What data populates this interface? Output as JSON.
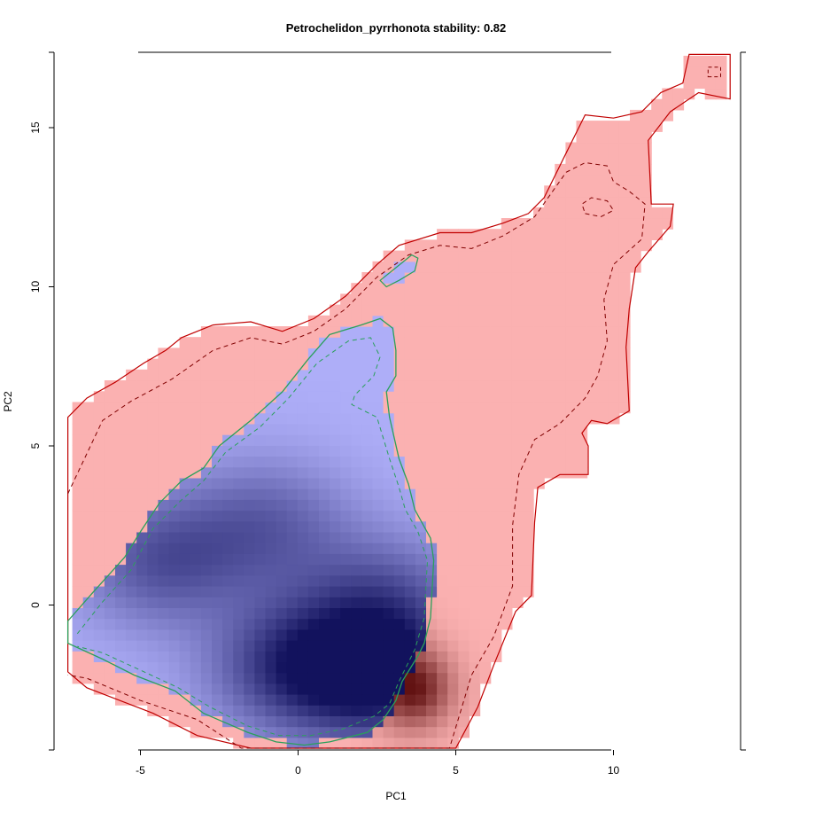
{
  "chart_data": {
    "type": "heatmap",
    "title": "Petrochelidon_pyrrhonota stability: 0.82",
    "xlabel": "PC1",
    "ylabel": "PC2",
    "x_ticks": [
      -5,
      0,
      5,
      10
    ],
    "y_ticks": [
      0,
      5,
      10,
      15
    ],
    "xlim": [
      -7.5,
      14
    ],
    "ylim": [
      -4.5,
      17.3
    ],
    "colors": {
      "background_density": "#fbb1b1",
      "background_dark": "#5a0a0a",
      "niche_overlap": "#aeaef8",
      "niche_dark": "#0a0a55",
      "background_contour": "#c00000",
      "background_contour_dashed": "#800000",
      "niche_contour": "#2aa05a"
    },
    "regions": {
      "background_outline": [
        [
          -7.3,
          5.4
        ],
        [
          -7.3,
          5.9
        ],
        [
          -6.7,
          6.5
        ],
        [
          -5.8,
          7.0
        ],
        [
          -4.9,
          7.6
        ],
        [
          -4.2,
          8.0
        ],
        [
          -3.7,
          8.4
        ],
        [
          -2.7,
          8.8
        ],
        [
          -1.5,
          8.9
        ],
        [
          -0.5,
          8.6
        ],
        [
          0.5,
          9.0
        ],
        [
          1.5,
          9.7
        ],
        [
          2.5,
          10.7
        ],
        [
          3.2,
          11.3
        ],
        [
          4.5,
          11.7
        ],
        [
          5.5,
          11.7
        ],
        [
          6.5,
          12.0
        ],
        [
          7.3,
          12.3
        ],
        [
          7.8,
          12.8
        ],
        [
          8.4,
          14.0
        ],
        [
          9.1,
          15.4
        ],
        [
          10.0,
          15.3
        ],
        [
          10.9,
          15.5
        ],
        [
          11.5,
          16.1
        ],
        [
          12.2,
          16.4
        ],
        [
          12.4,
          17.3
        ],
        [
          13.7,
          17.3
        ],
        [
          13.7,
          15.9
        ],
        [
          12.7,
          16.1
        ],
        [
          11.8,
          15.5
        ],
        [
          11.1,
          14.6
        ],
        [
          11.2,
          12.6
        ],
        [
          11.9,
          12.6
        ],
        [
          11.8,
          11.9
        ],
        [
          11.1,
          11.1
        ],
        [
          10.7,
          10.6
        ],
        [
          10.5,
          9.3
        ],
        [
          10.4,
          8.1
        ],
        [
          10.5,
          6.1
        ],
        [
          9.8,
          5.7
        ],
        [
          9.3,
          5.8
        ],
        [
          9.0,
          5.4
        ],
        [
          9.2,
          5.0
        ],
        [
          9.2,
          4.1
        ],
        [
          8.3,
          4.1
        ],
        [
          7.6,
          3.7
        ],
        [
          7.5,
          2.6
        ],
        [
          7.4,
          0.3
        ],
        [
          6.9,
          -0.2
        ],
        [
          6.2,
          -1.9
        ],
        [
          5.7,
          -3.2
        ],
        [
          5.0,
          -4.5
        ],
        [
          -1.5,
          -4.5
        ],
        [
          -3.2,
          -4.1
        ],
        [
          -4.6,
          -3.4
        ],
        [
          -6.7,
          -2.6
        ],
        [
          -7.3,
          -2.1
        ]
      ],
      "background_dashed": [
        [
          -7.3,
          3.5
        ],
        [
          -6.2,
          5.8
        ],
        [
          -5.3,
          6.4
        ],
        [
          -4.0,
          7.1
        ],
        [
          -2.7,
          8.0
        ],
        [
          -1.5,
          8.4
        ],
        [
          -0.5,
          8.2
        ],
        [
          0.5,
          8.6
        ],
        [
          1.5,
          9.3
        ],
        [
          2.5,
          10.3
        ],
        [
          3.5,
          11.0
        ],
        [
          4.5,
          11.3
        ],
        [
          5.5,
          11.2
        ],
        [
          6.5,
          11.6
        ],
        [
          7.5,
          12.2
        ],
        [
          8.0,
          12.9
        ],
        [
          8.5,
          13.6
        ],
        [
          9.1,
          13.9
        ],
        [
          9.8,
          13.8
        ],
        [
          10.0,
          13.3
        ],
        [
          10.5,
          13.0
        ],
        [
          11.0,
          12.6
        ],
        [
          10.9,
          11.5
        ],
        [
          10.0,
          10.7
        ],
        [
          9.7,
          9.6
        ],
        [
          9.8,
          8.3
        ],
        [
          9.5,
          7.2
        ],
        [
          9.1,
          6.5
        ],
        [
          8.3,
          5.7
        ],
        [
          7.5,
          5.2
        ],
        [
          7.0,
          4.1
        ],
        [
          6.8,
          2.5
        ],
        [
          6.8,
          0.6
        ],
        [
          6.2,
          -1.0
        ],
        [
          5.5,
          -2.2
        ],
        [
          4.8,
          -4.5
        ],
        [
          -1.8,
          -4.5
        ],
        [
          -3.2,
          -3.6
        ],
        [
          -5.0,
          -3.0
        ],
        [
          -6.7,
          -2.3
        ],
        [
          -7.3,
          -2.2
        ]
      ],
      "background_small_ring": [
        [
          9.1,
          12.3
        ],
        [
          9.6,
          12.2
        ],
        [
          10.0,
          12.4
        ],
        [
          9.8,
          12.7
        ],
        [
          9.3,
          12.8
        ],
        [
          9.0,
          12.6
        ]
      ],
      "background_top_ring": [
        [
          13.0,
          16.6
        ],
        [
          13.4,
          16.6
        ],
        [
          13.4,
          16.9
        ],
        [
          13.0,
          16.9
        ]
      ],
      "niche_outline": [
        [
          -7.3,
          -0.5
        ],
        [
          -6.5,
          0.4
        ],
        [
          -5.5,
          1.5
        ],
        [
          -5.0,
          2.3
        ],
        [
          -4.4,
          3.2
        ],
        [
          -3.7,
          3.9
        ],
        [
          -3.0,
          4.3
        ],
        [
          -2.5,
          5.0
        ],
        [
          -1.5,
          5.8
        ],
        [
          -0.5,
          6.7
        ],
        [
          0.3,
          7.7
        ],
        [
          1.0,
          8.5
        ],
        [
          2.0,
          8.8
        ],
        [
          2.6,
          9.0
        ],
        [
          3.0,
          8.7
        ],
        [
          3.1,
          8.0
        ],
        [
          3.1,
          7.2
        ],
        [
          2.8,
          6.7
        ],
        [
          2.9,
          5.9
        ],
        [
          3.2,
          4.6
        ],
        [
          3.5,
          3.8
        ],
        [
          3.7,
          3.0
        ],
        [
          4.2,
          2.1
        ],
        [
          4.3,
          1.4
        ],
        [
          4.2,
          -0.4
        ],
        [
          4.0,
          -1.2
        ],
        [
          3.8,
          -1.6
        ],
        [
          3.3,
          -2.4
        ],
        [
          3.1,
          -3.0
        ],
        [
          2.7,
          -3.6
        ],
        [
          2.2,
          -4.0
        ],
        [
          1.0,
          -4.3
        ],
        [
          0.2,
          -4.4
        ],
        [
          -0.7,
          -4.3
        ],
        [
          -1.6,
          -4.0
        ],
        [
          -3.0,
          -3.4
        ],
        [
          -3.9,
          -2.7
        ],
        [
          -5.2,
          -2.2
        ],
        [
          -6.2,
          -1.7
        ],
        [
          -7.3,
          -1.2
        ]
      ],
      "niche_dashed": [
        [
          -7.0,
          -0.9
        ],
        [
          -6.2,
          0.1
        ],
        [
          -5.3,
          1.1
        ],
        [
          -4.6,
          2.4
        ],
        [
          -3.7,
          3.3
        ],
        [
          -3.0,
          3.9
        ],
        [
          -2.3,
          4.8
        ],
        [
          -1.2,
          5.6
        ],
        [
          -0.3,
          6.5
        ],
        [
          0.6,
          7.6
        ],
        [
          1.6,
          8.3
        ],
        [
          2.3,
          8.4
        ],
        [
          2.6,
          7.8
        ],
        [
          2.4,
          7.2
        ],
        [
          1.8,
          6.6
        ],
        [
          1.7,
          6.3
        ],
        [
          2.5,
          5.9
        ],
        [
          2.9,
          4.6
        ],
        [
          3.2,
          3.7
        ],
        [
          3.4,
          3.0
        ],
        [
          3.8,
          2.3
        ],
        [
          4.1,
          1.4
        ],
        [
          4.0,
          -0.4
        ],
        [
          3.7,
          -1.4
        ],
        [
          3.2,
          -2.4
        ],
        [
          2.9,
          -3.1
        ],
        [
          2.4,
          -3.5
        ],
        [
          1.4,
          -3.9
        ],
        [
          0.4,
          -4.1
        ],
        [
          -0.6,
          -4.1
        ],
        [
          -1.6,
          -3.8
        ],
        [
          -2.8,
          -3.2
        ],
        [
          -3.8,
          -2.6
        ],
        [
          -5.1,
          -2.0
        ],
        [
          -6.2,
          -1.5
        ],
        [
          -7.0,
          -1.3
        ]
      ],
      "niche_island": [
        [
          2.6,
          10.2
        ],
        [
          3.1,
          10.6
        ],
        [
          3.6,
          11.0
        ],
        [
          3.8,
          10.9
        ],
        [
          3.7,
          10.5
        ],
        [
          3.2,
          10.2
        ],
        [
          2.8,
          10.0
        ]
      ]
    },
    "density_peaks": {
      "background": [
        [
          3.6,
          -2.6,
          1.0
        ],
        [
          2.5,
          -0.8,
          0.35
        ]
      ],
      "niche": [
        [
          2.7,
          -2.2,
          1.0
        ],
        [
          -0.1,
          -1.9,
          0.75
        ],
        [
          -4.3,
          1.4,
          0.55
        ],
        [
          -1.0,
          2.5,
          0.45
        ],
        [
          2.6,
          0.2,
          0.5
        ]
      ]
    },
    "grid": false,
    "legend": "none"
  }
}
